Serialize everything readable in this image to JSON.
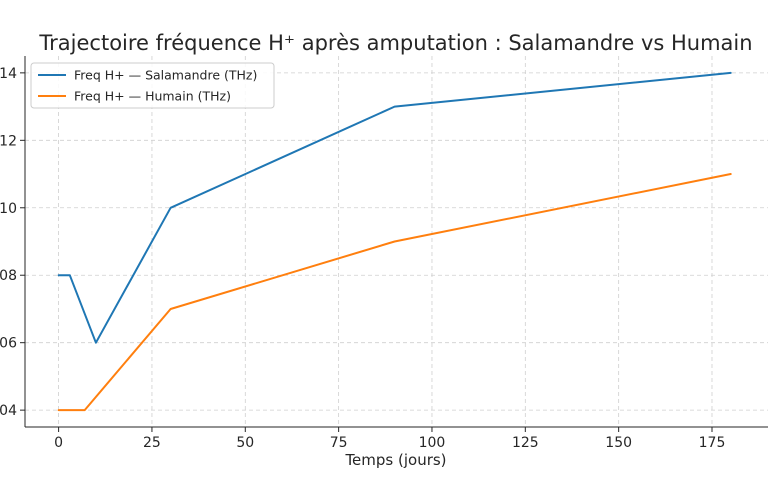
{
  "chart_data": {
    "type": "line",
    "title": "Trajectoire fréquence H⁺ après amputation : Salamandre vs Humain",
    "xlabel": "Temps (jours)",
    "ylabel": "",
    "xlim": [
      -9,
      190
    ],
    "ylim": [
      3.5,
      14.5
    ],
    "x_ticks": [
      0,
      25,
      50,
      75,
      100,
      125,
      150,
      175
    ],
    "x_tick_labels": [
      "0",
      "25",
      "50",
      "75",
      "100",
      "125",
      "150",
      "175"
    ],
    "y_ticks": [
      4,
      6,
      8,
      10,
      12,
      14
    ],
    "y_tick_labels": [
      "04",
      "06",
      "08",
      "10",
      "12",
      "14"
    ],
    "grid": true,
    "legend_position": "top-left",
    "series": [
      {
        "name": "Freq H+ — Salamandre (THz)",
        "color": "#1f77b4",
        "x": [
          0,
          3,
          10,
          30,
          90,
          180
        ],
        "y": [
          8,
          8,
          6,
          10,
          13,
          14
        ]
      },
      {
        "name": "Freq H+ — Humain (THz)",
        "color": "#ff7f0e",
        "x": [
          0,
          7,
          30,
          90,
          180
        ],
        "y": [
          4,
          4,
          7,
          9,
          11
        ]
      }
    ]
  }
}
